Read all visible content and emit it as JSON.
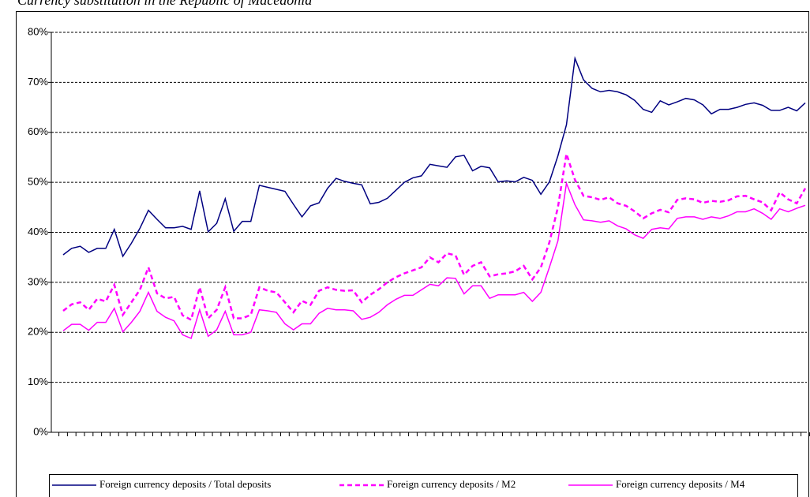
{
  "chart_data": {
    "type": "line",
    "title": "Currency substitution in the Republic of Macedonia",
    "categories": [
      null,
      null,
      null,
      null,
      null,
      null,
      null,
      null,
      null,
      null,
      null,
      null,
      null,
      null,
      null,
      null,
      null,
      null,
      null,
      null,
      null,
      null,
      null,
      null,
      null,
      null,
      null,
      null,
      null,
      null,
      null,
      null,
      null,
      null,
      null,
      null,
      null,
      null,
      null,
      null,
      null,
      null,
      null,
      null,
      null,
      null,
      null,
      null,
      null,
      null,
      null,
      null,
      null,
      null,
      null,
      null,
      null,
      null,
      null,
      null,
      null,
      null,
      null,
      null,
      null,
      null,
      null,
      null,
      null,
      null,
      null,
      null,
      null,
      null,
      null,
      null,
      null,
      null,
      null,
      null,
      null,
      null,
      null,
      null,
      null,
      null,
      null,
      null
    ],
    "series": [
      {
        "name": "Foreign currency deposits / Total deposits",
        "color": "#000080",
        "dash": false,
        "values": [
          35.5,
          36.8,
          37.2,
          36,
          36.8,
          36.8,
          40.6,
          35.2,
          37.8,
          40.8,
          44.4,
          42.6,
          40.9,
          40.9,
          41.2,
          40.6,
          48.3,
          40.1,
          41.8,
          46.7,
          40.2,
          42.2,
          42.2,
          49.4,
          49,
          48.6,
          48.2,
          45.6,
          43.1,
          45.3,
          45.9,
          48.8,
          50.8,
          50.2,
          49.8,
          49.5,
          45.7,
          46,
          46.8,
          48.4,
          50,
          50.9,
          51.3,
          53.6,
          53.3,
          53,
          55.1,
          55.4,
          52.3,
          53.2,
          52.9,
          50.1,
          50.3,
          50.1,
          51,
          50.4,
          47.6,
          50.1,
          55.3,
          61.5,
          74.8,
          70.5,
          68.8,
          68.1,
          68.4,
          68.1,
          67.5,
          66.4,
          64.6,
          64,
          66.3,
          65.5,
          66.1,
          66.8,
          66.5,
          65.5,
          63.7,
          64.6,
          64.6,
          65,
          65.6,
          65.9,
          65.4,
          64.4,
          64.4,
          65,
          64.3,
          65.9
        ]
      },
      {
        "name": "Foreign currency deposits / M2",
        "color": "#ff00ff",
        "dash": true,
        "values": [
          24.3,
          25.6,
          26,
          24.5,
          26.7,
          26.2,
          29.5,
          23.5,
          26,
          28.5,
          33,
          27.8,
          26.8,
          27.1,
          23.4,
          22.5,
          29,
          22.8,
          24.5,
          29,
          22.8,
          22.8,
          23.5,
          29,
          28.3,
          28,
          26,
          24,
          26.3,
          25.5,
          28.3,
          29,
          28.5,
          28.3,
          28.4,
          26,
          27.5,
          28.6,
          30,
          31,
          31.8,
          32.4,
          33,
          35,
          34,
          35.8,
          35.4,
          31.5,
          33.3,
          34,
          31.2,
          31.6,
          31.8,
          32.2,
          33.3,
          30.6,
          33,
          38,
          45,
          55.7,
          50.5,
          47.3,
          47,
          46.5,
          47,
          45.8,
          45.3,
          44.2,
          42.8,
          43.8,
          44.5,
          44,
          46.5,
          46.8,
          46.6,
          45.9,
          46.3,
          46.1,
          46.4,
          47.2,
          47.3,
          46.6,
          46,
          44.4,
          48,
          46.6,
          45.8,
          48.8
        ]
      },
      {
        "name": "Foreign currency deposits / M4",
        "color": "#ff00ff",
        "dash": false,
        "values": [
          20.3,
          21.6,
          21.6,
          20.4,
          22,
          22,
          24.8,
          20.1,
          22,
          24.2,
          28,
          24.2,
          23,
          22.3,
          19.5,
          18.8,
          24.5,
          19.2,
          20.5,
          24.2,
          19.5,
          19.5,
          20,
          24.5,
          24.3,
          24,
          21.7,
          20.5,
          21.7,
          21.7,
          23.8,
          24.8,
          24.5,
          24.5,
          24.3,
          22.6,
          23,
          24,
          25.5,
          26.6,
          27.4,
          27.4,
          28.5,
          29.6,
          29.3,
          30.9,
          30.8,
          27.7,
          29.3,
          29.3,
          26.8,
          27.5,
          27.5,
          27.5,
          28,
          26.2,
          28,
          33,
          38.3,
          49.8,
          45.5,
          42.5,
          42.3,
          42,
          42.3,
          41.3,
          40.7,
          39.5,
          38.8,
          40.6,
          40.9,
          40.7,
          42.8,
          43.1,
          43.1,
          42.6,
          43.1,
          42.8,
          43.3,
          44.1,
          44.1,
          44.7,
          43.8,
          42.6,
          44.7,
          44.1,
          44.8,
          45.4
        ]
      }
    ],
    "ylim": [
      0,
      80
    ],
    "yticks": [
      {
        "value": 0,
        "label": "0%"
      },
      {
        "value": 10,
        "label": "10%"
      },
      {
        "value": 20,
        "label": "20%"
      },
      {
        "value": 30,
        "label": "30%"
      },
      {
        "value": 40,
        "label": "40%"
      },
      {
        "value": 50,
        "label": "50%"
      },
      {
        "value": 60,
        "label": "60%"
      },
      {
        "value": 70,
        "label": "70%"
      },
      {
        "value": 80,
        "label": "80%"
      }
    ],
    "grid": true,
    "legend": "bottom"
  }
}
